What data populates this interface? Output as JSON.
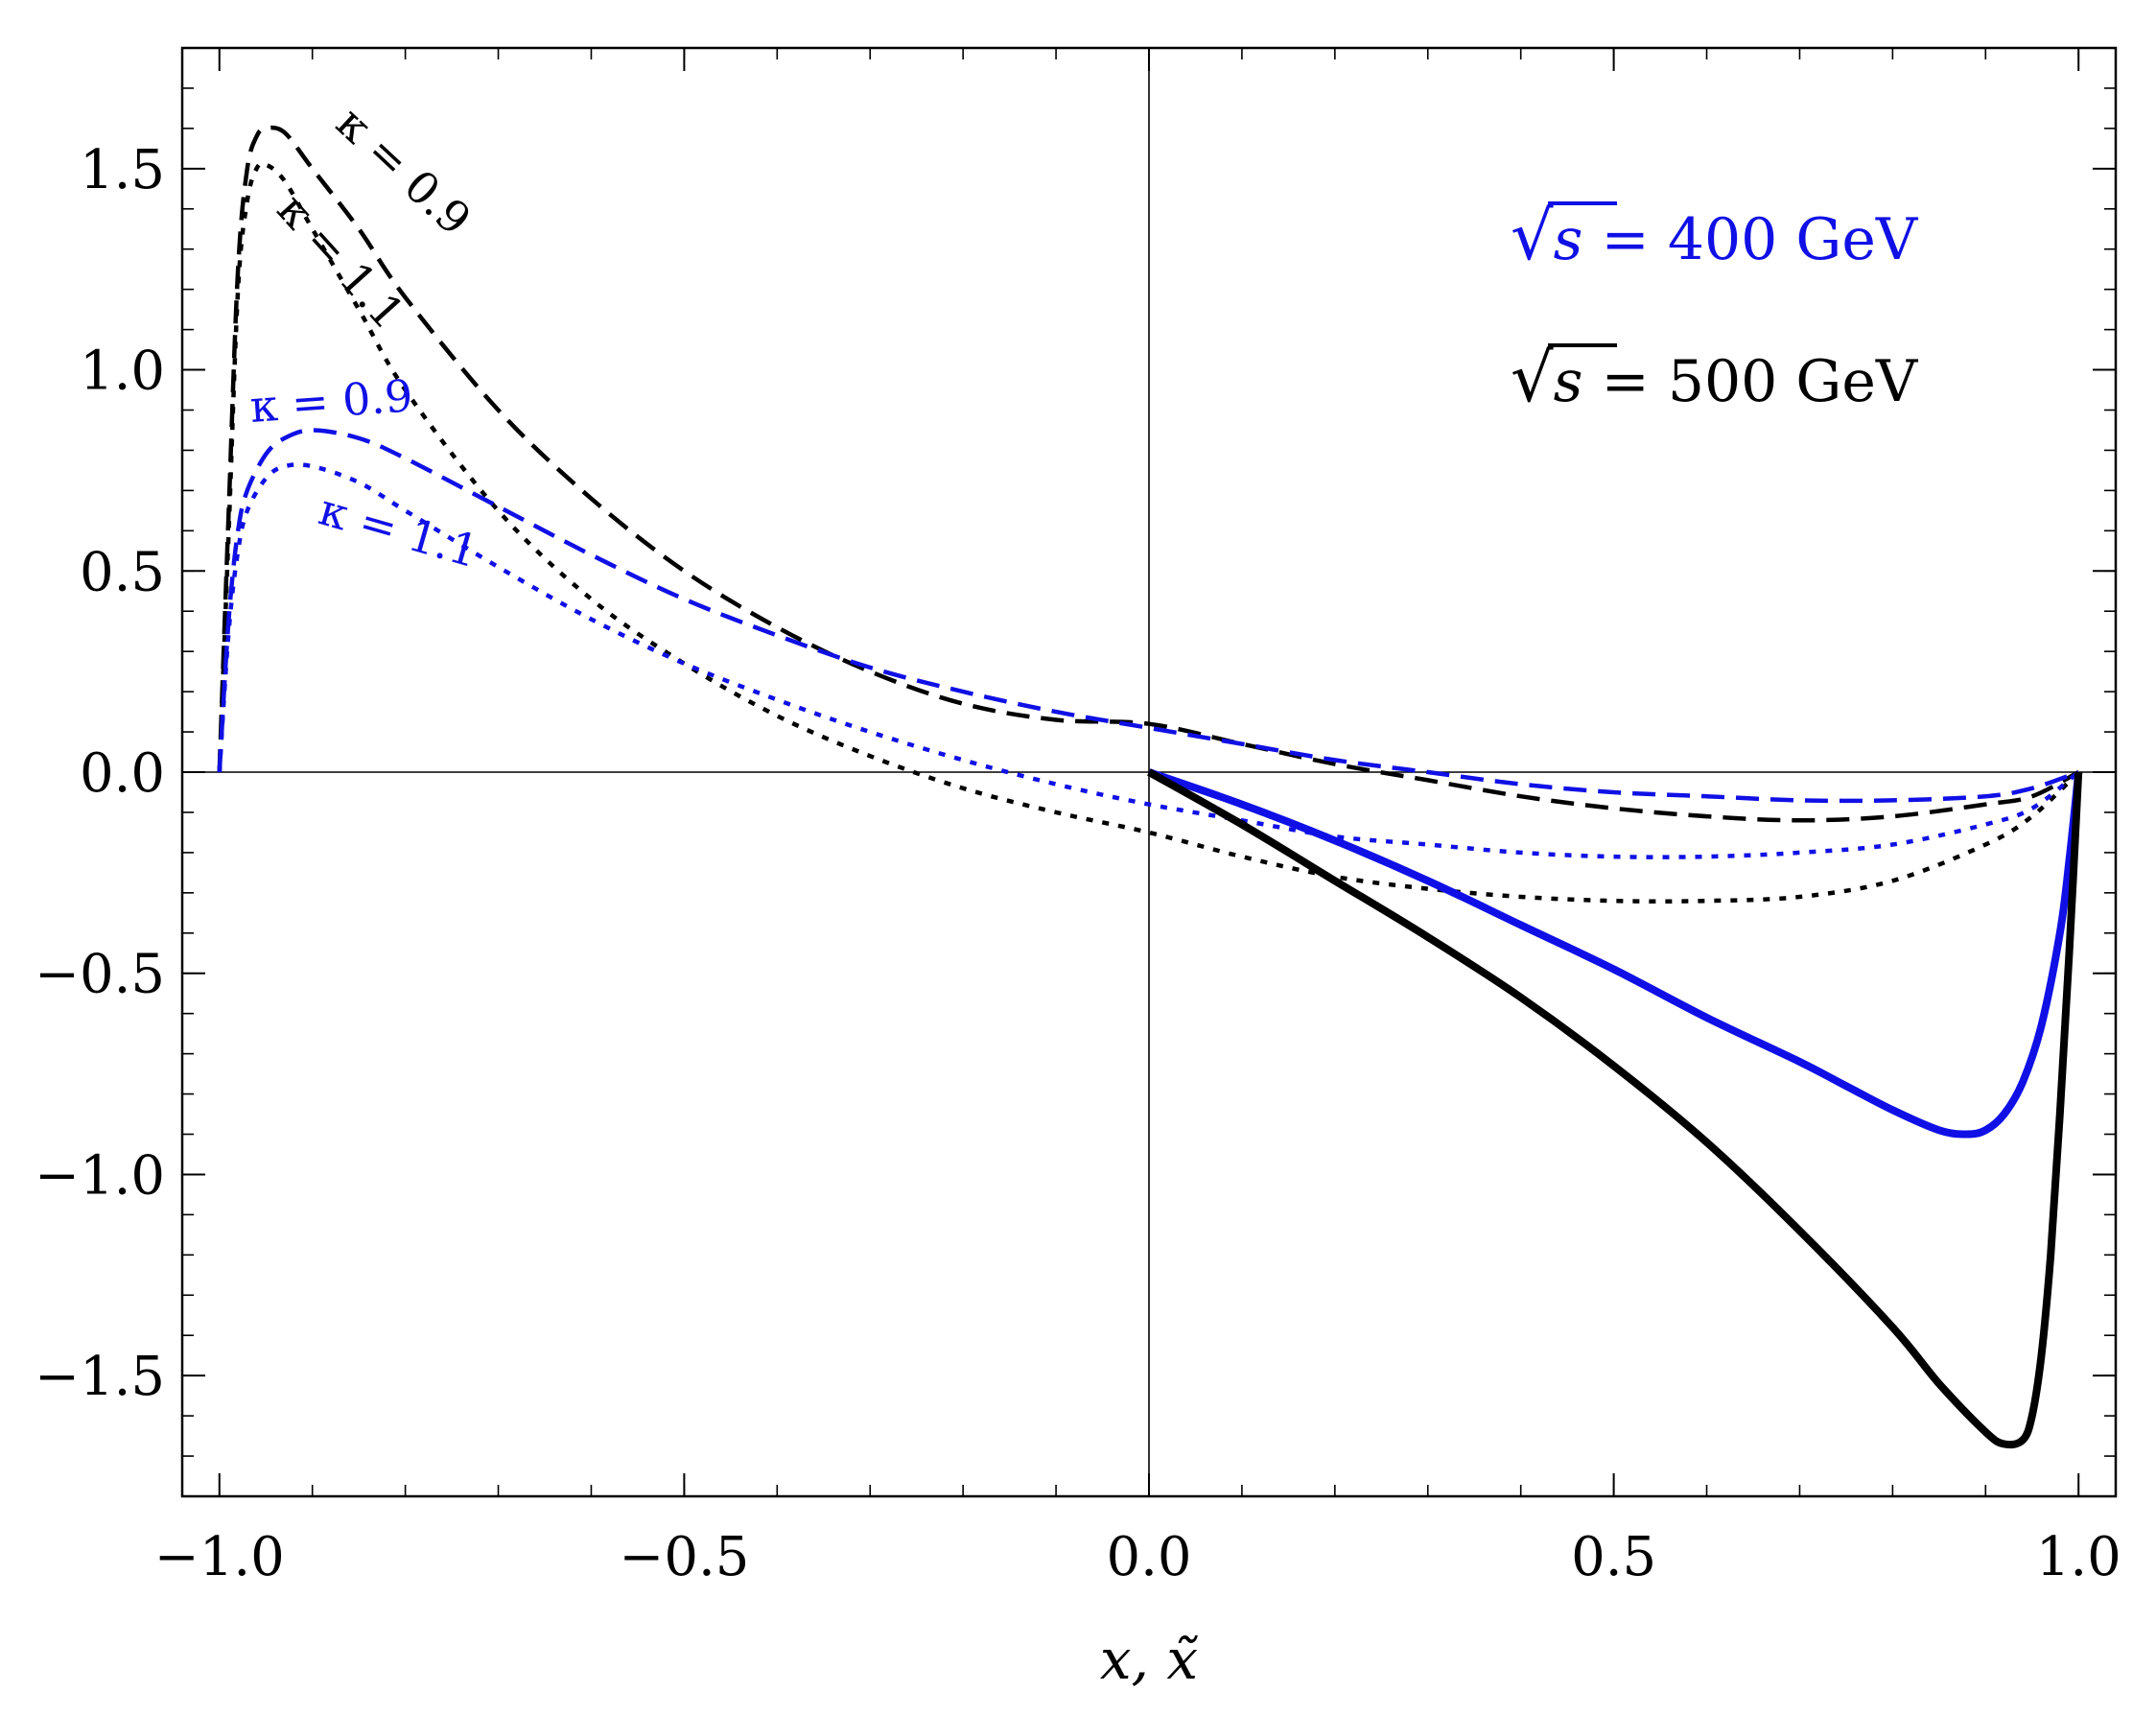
{
  "chart_data": {
    "type": "line",
    "xlabel": "x, x̃",
    "ylabel": "",
    "xlim": [
      -1.04,
      1.04
    ],
    "ylim": [
      -1.8,
      1.8
    ],
    "xticks": [
      -1.0,
      -0.5,
      0.0,
      0.5,
      1.0
    ],
    "xtick_labels": [
      "−1.0",
      "−0.5",
      "0.0",
      "0.5",
      "1.0"
    ],
    "yticks": [
      1.5,
      1.0,
      0.5,
      0.0,
      -0.5,
      -1.0,
      -1.5
    ],
    "ytick_labels": [
      "1.5",
      "1.0",
      "0.5",
      "0.0",
      "−0.5",
      "−1.0",
      "−1.5"
    ],
    "legend": [
      {
        "prefix": "√",
        "var": "s",
        "text": " = 400 GeV",
        "color": "#1010e6"
      },
      {
        "prefix": "√",
        "var": "s",
        "text": " = 500 GeV",
        "color": "#000000"
      }
    ],
    "annotations": [
      {
        "text": "κ = 0.9",
        "color": "#000000"
      },
      {
        "text": "κ = 1.1",
        "color": "#000000"
      },
      {
        "text": "κ = 0.9",
        "color": "#1010e6"
      },
      {
        "text": "κ = 1.1",
        "color": "#1010e6"
      }
    ],
    "series": [
      {
        "name": "500 GeV, κ = 0.9",
        "color": "#000000",
        "style": "dashed",
        "x": [
          -1.0,
          -0.99,
          -0.98,
          -0.97,
          -0.96,
          -0.95,
          -0.93,
          -0.9,
          -0.85,
          -0.8,
          -0.7,
          -0.6,
          -0.5,
          -0.4,
          -0.3,
          -0.2,
          -0.1,
          0.0,
          0.1,
          0.2,
          0.3,
          0.4,
          0.5,
          0.6,
          0.7,
          0.8,
          0.9,
          0.95,
          1.0
        ],
        "y": [
          0.0,
          0.65,
          1.25,
          1.5,
          1.58,
          1.6,
          1.59,
          1.5,
          1.35,
          1.18,
          0.9,
          0.68,
          0.5,
          0.36,
          0.25,
          0.17,
          0.13,
          0.12,
          0.07,
          0.02,
          -0.02,
          -0.06,
          -0.09,
          -0.11,
          -0.12,
          -0.11,
          -0.08,
          -0.06,
          0.0
        ]
      },
      {
        "name": "500 GeV, κ = 1.1",
        "color": "#000000",
        "style": "dotted",
        "x": [
          -1.0,
          -0.99,
          -0.98,
          -0.97,
          -0.96,
          -0.95,
          -0.93,
          -0.9,
          -0.85,
          -0.8,
          -0.7,
          -0.6,
          -0.5,
          -0.4,
          -0.3,
          -0.2,
          -0.1,
          0.0,
          0.1,
          0.2,
          0.3,
          0.4,
          0.5,
          0.6,
          0.7,
          0.8,
          0.9,
          0.95,
          1.0
        ],
        "y": [
          0.0,
          0.6,
          1.2,
          1.42,
          1.5,
          1.51,
          1.47,
          1.35,
          1.15,
          0.95,
          0.65,
          0.43,
          0.27,
          0.14,
          0.04,
          -0.04,
          -0.1,
          -0.15,
          -0.21,
          -0.26,
          -0.29,
          -0.31,
          -0.32,
          -0.32,
          -0.31,
          -0.27,
          -0.18,
          -0.11,
          0.0
        ]
      },
      {
        "name": "400 GeV, κ = 0.9",
        "color": "#1010e6",
        "style": "dashed",
        "x": [
          -1.0,
          -0.99,
          -0.98,
          -0.97,
          -0.95,
          -0.93,
          -0.9,
          -0.85,
          -0.8,
          -0.7,
          -0.6,
          -0.5,
          -0.4,
          -0.3,
          -0.2,
          -0.1,
          0.0,
          0.1,
          0.2,
          0.3,
          0.4,
          0.5,
          0.6,
          0.7,
          0.8,
          0.9,
          0.95,
          1.0
        ],
        "y": [
          0.0,
          0.38,
          0.6,
          0.7,
          0.79,
          0.83,
          0.85,
          0.83,
          0.78,
          0.66,
          0.54,
          0.43,
          0.34,
          0.26,
          0.2,
          0.15,
          0.11,
          0.07,
          0.03,
          0.0,
          -0.03,
          -0.05,
          -0.06,
          -0.07,
          -0.07,
          -0.06,
          -0.04,
          0.0
        ]
      },
      {
        "name": "400 GeV, κ = 1.1",
        "color": "#1010e6",
        "style": "dotted",
        "x": [
          -1.0,
          -0.99,
          -0.98,
          -0.97,
          -0.95,
          -0.93,
          -0.9,
          -0.85,
          -0.8,
          -0.7,
          -0.6,
          -0.5,
          -0.4,
          -0.3,
          -0.2,
          -0.1,
          0.0,
          0.1,
          0.2,
          0.3,
          0.4,
          0.5,
          0.6,
          0.7,
          0.8,
          0.9,
          0.95,
          1.0
        ],
        "y": [
          0.0,
          0.35,
          0.55,
          0.65,
          0.73,
          0.76,
          0.76,
          0.72,
          0.65,
          0.51,
          0.38,
          0.27,
          0.18,
          0.1,
          0.03,
          -0.03,
          -0.08,
          -0.12,
          -0.16,
          -0.18,
          -0.2,
          -0.21,
          -0.21,
          -0.2,
          -0.18,
          -0.13,
          -0.09,
          0.0
        ]
      },
      {
        "name": "400 GeV, x̃",
        "color": "#1010e6",
        "style": "solid",
        "x": [
          0.0,
          0.1,
          0.2,
          0.3,
          0.4,
          0.5,
          0.6,
          0.7,
          0.75,
          0.8,
          0.85,
          0.88,
          0.9,
          0.92,
          0.94,
          0.96,
          0.98,
          0.99,
          1.0
        ],
        "y": [
          0.0,
          -0.08,
          -0.17,
          -0.27,
          -0.38,
          -0.49,
          -0.61,
          -0.72,
          -0.78,
          -0.84,
          -0.89,
          -0.9,
          -0.89,
          -0.85,
          -0.77,
          -0.63,
          -0.4,
          -0.22,
          0.0
        ]
      },
      {
        "name": "500 GeV, x̃",
        "color": "#000000",
        "style": "solid",
        "x": [
          0.0,
          0.1,
          0.2,
          0.3,
          0.4,
          0.5,
          0.6,
          0.7,
          0.8,
          0.85,
          0.9,
          0.92,
          0.94,
          0.95,
          0.96,
          0.97,
          0.98,
          0.99,
          1.0
        ],
        "y": [
          0.0,
          -0.13,
          -0.27,
          -0.41,
          -0.56,
          -0.73,
          -0.92,
          -1.14,
          -1.38,
          -1.52,
          -1.64,
          -1.67,
          -1.66,
          -1.6,
          -1.45,
          -1.2,
          -0.85,
          -0.45,
          0.0
        ]
      }
    ]
  }
}
